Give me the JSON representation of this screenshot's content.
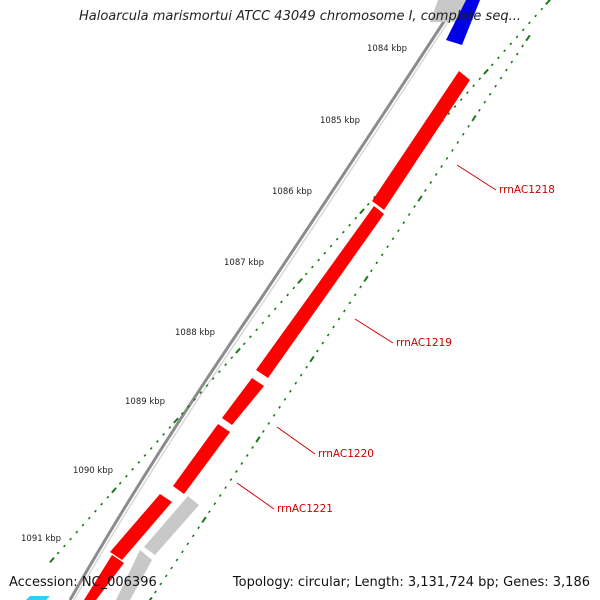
{
  "title": "Haloarcula marismortui ATCC 43049 chromosome I, complete seq...",
  "footer": {
    "accession": "Accession: NC_006396",
    "topology": "Topology: circular; Length: 3,131,724 bp; Genes: 3,186"
  },
  "scale_labels": [
    "1084 kbp",
    "1085 kbp",
    "1086 kbp",
    "1087 kbp",
    "1088 kbp",
    "1089 kbp",
    "1090 kbp",
    "1091 kbp"
  ],
  "gene_labels": [
    "rrnAC1218",
    "rrnAC1219",
    "rrnAC1220",
    "rrnAC1221"
  ],
  "colors": {
    "backbone": "#8c8c8c",
    "gene_red": "#ff0000",
    "gene_gray": "#c8c8c8",
    "gene_blue": "#0000e6",
    "gene_cyan": "#33ccff",
    "tick_green": "#1a7a1a",
    "label_red": "#cc0000"
  },
  "icons": {
    "gene_arrow": "arrow-gene-icon"
  }
}
